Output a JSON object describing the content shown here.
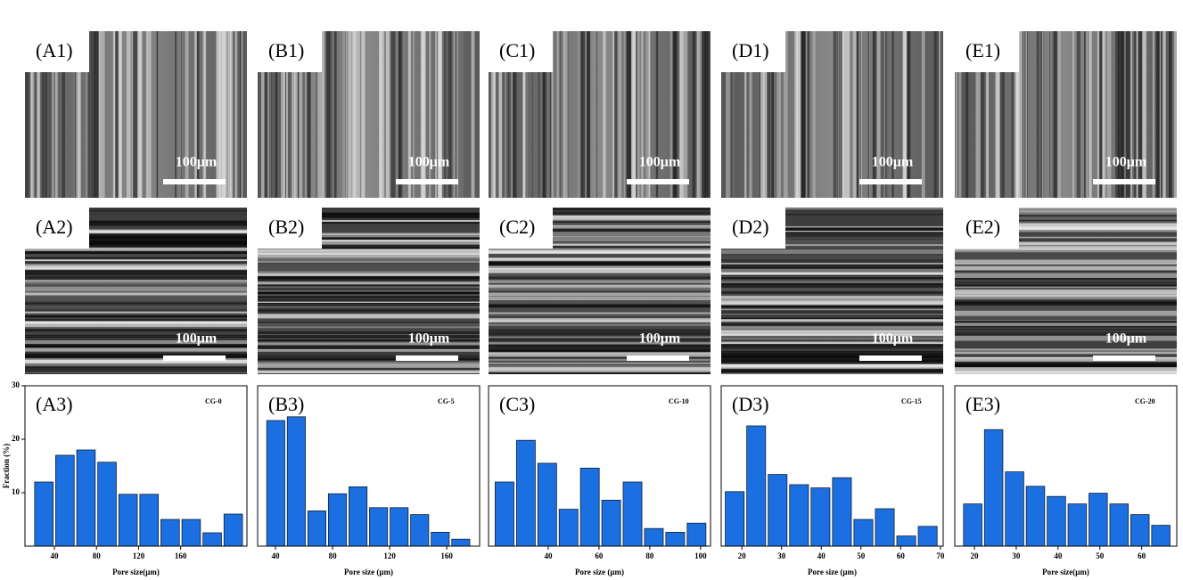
{
  "images": [
    {
      "label": "(A1)",
      "scale": "100μm"
    },
    {
      "label": "(B1)",
      "scale": "100μm"
    },
    {
      "label": "(C1)",
      "scale": "100μm"
    },
    {
      "label": "(D1)",
      "scale": "100μm"
    },
    {
      "label": "(E1)",
      "scale": "100μm"
    },
    {
      "label": "(A2)",
      "scale": "100μm"
    },
    {
      "label": "(B2)",
      "scale": "100μm"
    },
    {
      "label": "(C2)",
      "scale": "100μm"
    },
    {
      "label": "(D2)",
      "scale": "100μm"
    },
    {
      "label": "(E2)",
      "scale": "100μm"
    }
  ],
  "chart_data": [
    {
      "type": "histogram",
      "panel": "(A3)",
      "annotation": "CG-0",
      "xlabel": "Pore size(μm)",
      "ylabel": "Fraction (%)",
      "color": "#1c6fe0",
      "bins": [
        20,
        40,
        60,
        80,
        100,
        120,
        140,
        160,
        180,
        200,
        220
      ],
      "values": [
        12,
        17,
        18,
        15.7,
        9.7,
        9.7,
        5,
        5,
        2.5,
        6
      ],
      "xlim": [
        12,
        223
      ],
      "xticks": [
        40,
        80,
        120,
        160
      ],
      "ylim": [
        0,
        30
      ],
      "yticks": [
        10,
        20,
        30
      ]
    },
    {
      "type": "histogram",
      "panel": "(B3)",
      "annotation": "CG-5",
      "xlabel": "Pore size (μm)",
      "color": "#1c6fe0",
      "bins": [
        33,
        47.4,
        61.8,
        76.2,
        90.6,
        105,
        119.4,
        133.8,
        148.2,
        162.6,
        177
      ],
      "values": [
        23.5,
        24.2,
        6.6,
        9.8,
        11.1,
        7.2,
        7.2,
        5.9,
        2.6,
        1.3
      ],
      "xlim": [
        27.5,
        183
      ],
      "xticks": [
        40,
        80,
        120,
        160
      ],
      "ylim": [
        0,
        30
      ],
      "yticks": []
    },
    {
      "type": "histogram",
      "panel": "(C3)",
      "annotation": "CG-10",
      "xlabel": "Pore size (μm)",
      "color": "#1c6fe0",
      "bins": [
        18.6,
        27,
        35.4,
        43.8,
        52.2,
        60.6,
        69,
        77.4,
        85.8,
        94.2,
        102.6
      ],
      "values": [
        12,
        19.8,
        15.5,
        6.9,
        14.6,
        8.6,
        12,
        3.3,
        2.6,
        4.3
      ],
      "xlim": [
        16.5,
        103.9
      ],
      "xticks": [
        40,
        60,
        80,
        100
      ],
      "ylim": [
        0,
        30
      ],
      "yticks": []
    },
    {
      "type": "histogram",
      "panel": "(D3)",
      "annotation": "CG-15",
      "xlabel": "Pore size (μm)",
      "color": "#1c6fe0",
      "bins": [
        15.5,
        20.9,
        26.3,
        31.7,
        37.1,
        42.5,
        47.9,
        53.3,
        58.7,
        64.1,
        69.5
      ],
      "values": [
        10.2,
        22.5,
        13.4,
        11.5,
        10.9,
        12.8,
        5,
        7,
        1.9,
        3.7
      ],
      "xlim": [
        14.8,
        70.7
      ],
      "xticks": [
        20,
        30,
        40,
        50,
        60,
        70
      ],
      "ylim": [
        0,
        30
      ],
      "yticks": []
    },
    {
      "type": "histogram",
      "panel": "(E3)",
      "annotation": "CG-20",
      "xlabel": "Pore size(μm)",
      "color": "#1c6fe0",
      "bins": [
        17.1,
        22.1,
        27.1,
        32.1,
        37.1,
        42.1,
        47.1,
        52.1,
        57.1,
        62.1,
        67.1
      ],
      "values": [
        7.9,
        21.8,
        13.9,
        11.2,
        9.3,
        7.9,
        9.9,
        7.9,
        5.9,
        3.9
      ],
      "xlim": [
        15.3,
        68.4
      ],
      "xticks": [
        20,
        30,
        40,
        50,
        60
      ],
      "ylim": [
        0,
        30
      ],
      "yticks": []
    }
  ]
}
